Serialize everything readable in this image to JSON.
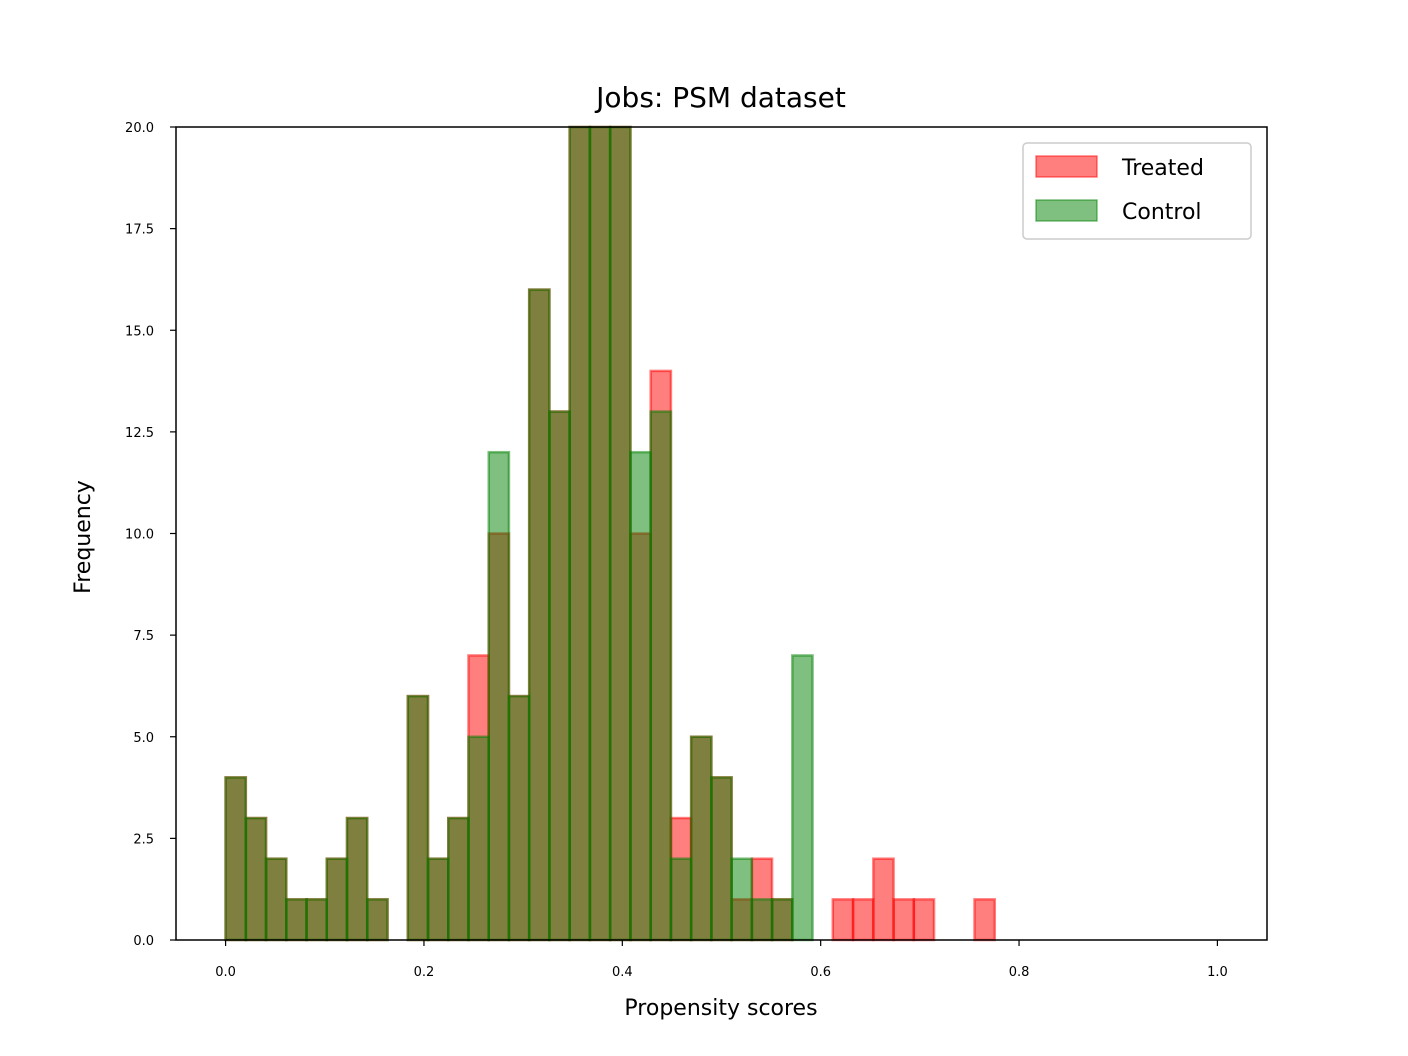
{
  "chart_data": {
    "type": "bar",
    "subtype": "overlapping-histogram",
    "title": "Jobs: PSM dataset",
    "xlabel": "Propensity scores",
    "ylabel": "Frequency",
    "xlim": [
      -0.05,
      1.05
    ],
    "ylim": [
      0,
      20
    ],
    "xticks": [
      0.0,
      0.2,
      0.4,
      0.6,
      0.8,
      1.0
    ],
    "xtick_labels": [
      "0.0",
      "0.2",
      "0.4",
      "0.6",
      "0.8",
      "1.0"
    ],
    "yticks": [
      0,
      2.5,
      5,
      7.5,
      10,
      12.5,
      15,
      17.5,
      20
    ],
    "ytick_labels": [
      "0.0",
      "2.5",
      "5.0",
      "7.5",
      "10.0",
      "12.5",
      "15.0",
      "17.5",
      "20.0"
    ],
    "bin_width": 0.0204,
    "bin_starts": [
      0.0,
      0.0204,
      0.0408,
      0.0612,
      0.0816,
      0.102,
      0.1224,
      0.1429,
      0.1633,
      0.1837,
      0.2041,
      0.2245,
      0.2449,
      0.2653,
      0.2857,
      0.3061,
      0.3265,
      0.3469,
      0.3673,
      0.3878,
      0.4082,
      0.4286,
      0.449,
      0.4694,
      0.4898,
      0.5102,
      0.5306,
      0.551,
      0.5714,
      0.5918,
      0.6122,
      0.6327,
      0.6531,
      0.6735,
      0.6939,
      0.7143,
      0.7347,
      0.7551,
      0.7755,
      0.7959,
      0.8163,
      0.8367,
      0.8571,
      0.8776,
      0.898,
      0.9184,
      0.9388,
      0.9592,
      0.9796
    ],
    "series": [
      {
        "name": "Treated",
        "color": "#ff0000",
        "alpha": 0.5,
        "values": [
          4,
          3,
          2,
          1,
          1,
          2,
          3,
          1,
          0,
          6,
          2,
          3,
          7,
          10,
          6,
          16,
          13,
          20,
          20,
          20,
          10,
          14,
          3,
          5,
          4,
          1,
          2,
          1,
          0,
          0,
          1,
          1,
          2,
          1,
          1,
          0,
          0,
          1,
          0,
          0,
          0,
          0,
          0,
          0,
          0,
          0,
          0,
          0,
          0
        ]
      },
      {
        "name": "Control",
        "color": "#008000",
        "alpha": 0.5,
        "values": [
          4,
          3,
          2,
          1,
          1,
          2,
          3,
          1,
          0,
          6,
          2,
          3,
          5,
          12,
          6,
          16,
          13,
          20,
          20,
          20,
          12,
          13,
          2,
          5,
          4,
          2,
          1,
          1,
          7,
          0,
          0,
          0,
          0,
          0,
          0,
          0,
          0,
          0,
          0,
          0,
          0,
          0,
          0,
          0,
          0,
          0,
          0,
          0,
          0
        ]
      }
    ],
    "legend": {
      "position": "top-right",
      "entries": [
        "Treated",
        "Control"
      ]
    },
    "grid": false
  }
}
